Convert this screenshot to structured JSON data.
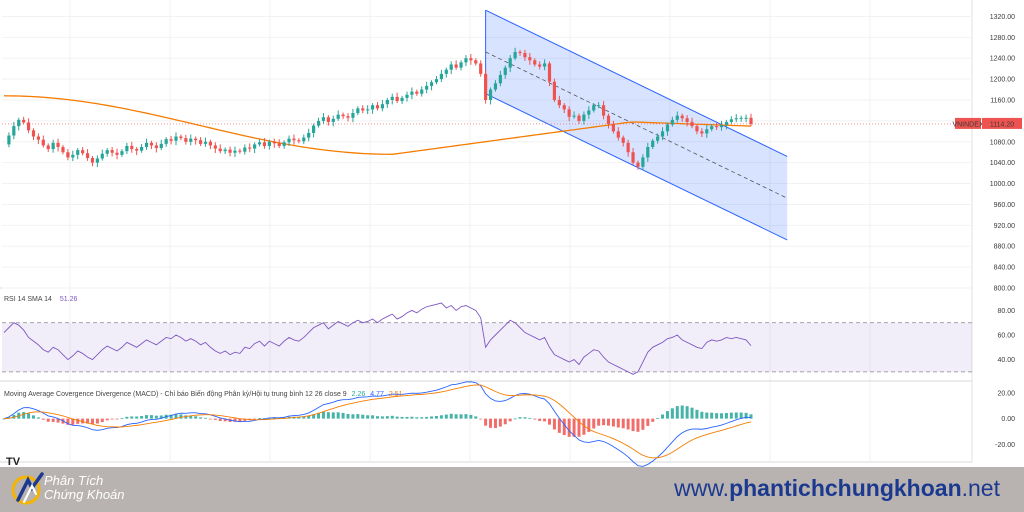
{
  "chart_data": [
    {
      "type": "candlestick",
      "name": "VNINDEX",
      "ticker_label": "VNINDEX",
      "last_value_label": "1114.20",
      "y_ticks": [
        "1320.00",
        "1280.00",
        "1240.00",
        "1200.00",
        "1160.00",
        "1120.00",
        "1080.00",
        "1040.00",
        "1000.00",
        "960.00",
        "920.00",
        "880.00",
        "840.00",
        "800.00"
      ],
      "ylim": [
        800,
        1340
      ],
      "moving_average_color": "#f57c00",
      "channel_color": "#2962ff",
      "up_color": "#26a69a",
      "down_color": "#ef5350",
      "closes": [
        1075,
        1092,
        1110,
        1122,
        1117,
        1102,
        1090,
        1084,
        1073,
        1066,
        1078,
        1070,
        1060,
        1050,
        1055,
        1064,
        1058,
        1049,
        1040,
        1048,
        1057,
        1064,
        1059,
        1055,
        1062,
        1072,
        1066,
        1063,
        1070,
        1078,
        1073,
        1068,
        1076,
        1085,
        1082,
        1090,
        1087,
        1080,
        1086,
        1083,
        1076,
        1080,
        1073,
        1067,
        1062,
        1065,
        1059,
        1063,
        1061,
        1069,
        1067,
        1075,
        1079,
        1072,
        1080,
        1077,
        1072,
        1079,
        1086,
        1083,
        1081,
        1088,
        1097,
        1111,
        1120,
        1127,
        1118,
        1124,
        1132,
        1129,
        1126,
        1135,
        1144,
        1140,
        1142,
        1150,
        1144,
        1152,
        1160,
        1166,
        1158,
        1164,
        1170,
        1176,
        1172,
        1180,
        1187,
        1194,
        1200,
        1210,
        1218,
        1228,
        1222,
        1232,
        1240,
        1236,
        1230,
        1210,
        1160,
        1180,
        1192,
        1208,
        1222,
        1240,
        1252,
        1250,
        1242,
        1236,
        1228,
        1224,
        1230,
        1195,
        1160,
        1150,
        1142,
        1128,
        1130,
        1120,
        1132,
        1140,
        1150,
        1150,
        1130,
        1114,
        1100,
        1088,
        1078,
        1060,
        1040,
        1032,
        1050,
        1070,
        1082,
        1090,
        1100,
        1113,
        1122,
        1130,
        1125,
        1118,
        1110,
        1100,
        1096,
        1104,
        1110,
        1108,
        1112,
        1118,
        1123,
        1125,
        1126,
        1126,
        1114
      ]
    },
    {
      "type": "line",
      "name": "RSI 14 SMA 14",
      "title": "RSI 14 SMA 14",
      "value_label": "51.26",
      "y_ticks": [
        "80.00",
        "60.00",
        "40.00"
      ],
      "ylim": [
        25,
        95
      ],
      "band": [
        30,
        70
      ],
      "line_color": "#7e57c2",
      "values": [
        62,
        66,
        70,
        68,
        64,
        58,
        55,
        52,
        48,
        46,
        50,
        48,
        44,
        40,
        43,
        47,
        45,
        42,
        40,
        44,
        48,
        51,
        49,
        47,
        50,
        54,
        52,
        50,
        53,
        56,
        54,
        52,
        55,
        58,
        57,
        60,
        58,
        55,
        57,
        55,
        52,
        54,
        50,
        47,
        45,
        47,
        44,
        46,
        45,
        50,
        49,
        53,
        55,
        51,
        55,
        53,
        51,
        55,
        58,
        56,
        55,
        58,
        62,
        66,
        68,
        70,
        65,
        68,
        71,
        69,
        67,
        70,
        72,
        70,
        71,
        73,
        70,
        73,
        75,
        77,
        73,
        75,
        78,
        80,
        78,
        81,
        83,
        84,
        85,
        86,
        82,
        84,
        80,
        83,
        84,
        82,
        80,
        74,
        50,
        56,
        60,
        64,
        68,
        72,
        70,
        66,
        62,
        60,
        58,
        56,
        58,
        50,
        44,
        42,
        40,
        38,
        40,
        36,
        42,
        45,
        48,
        47,
        42,
        38,
        36,
        34,
        32,
        30,
        28,
        30,
        38,
        46,
        50,
        52,
        54,
        57,
        58,
        60,
        56,
        54,
        52,
        50,
        49,
        54,
        56,
        55,
        56,
        58,
        57,
        58,
        57,
        56,
        51.26
      ]
    },
    {
      "type": "macd",
      "title": "Moving Average Covergence Divergence (MACD) - Chỉ báo Biến động Phân kỳ/Hội tụ trung bình 12 26 close 9",
      "values_label": [
        "2.26",
        "4.77",
        "2.51"
      ],
      "values_label_colors": [
        "#26a69a",
        "#2962ff",
        "#f57c00"
      ],
      "y_ticks": [
        "20.00",
        "0.00",
        "-20.00"
      ],
      "ylim": [
        -32,
        26
      ],
      "macd_color": "#2962ff",
      "signal_color": "#f57c00",
      "hist_up_color": "#26a69a",
      "hist_down_color": "#ef5350"
    }
  ],
  "footer": {
    "brand_line1": "Phân Tích",
    "brand_line2": "Chứng Khoán",
    "url_prefix": "www.",
    "url_bold": "phantichchungkhoan",
    "url_suffix": ".net"
  },
  "tv_logo": "TV"
}
